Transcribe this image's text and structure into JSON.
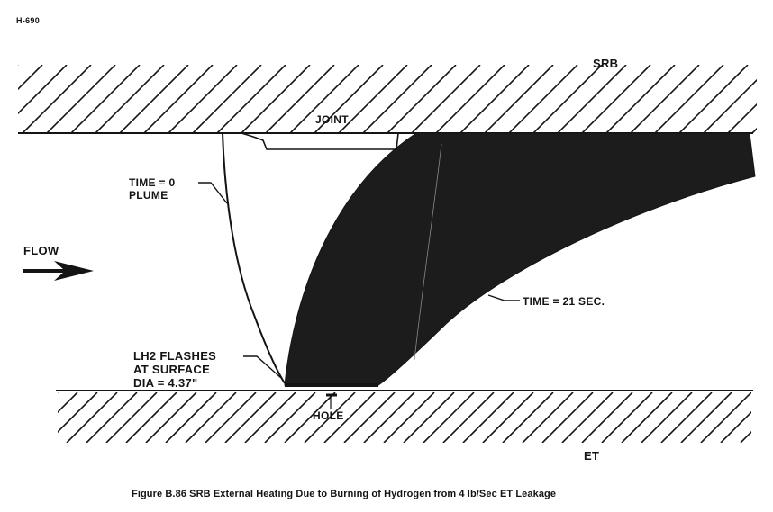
{
  "document_id": "H-690",
  "labels": {
    "srb": "SRB",
    "joint": "JOINT",
    "time_zero_line1": "TIME = 0",
    "time_zero_line2": "PLUME",
    "flow": "FLOW",
    "time_21": "TIME = 21 SEC.",
    "lh2_line1": "LH2 FLASHES",
    "lh2_line2": "AT SURFACE",
    "lh2_line3": "DIA = 4.37\"",
    "hole": "HOLE",
    "et": "ET"
  },
  "caption": "Figure B.86  SRB External Heating Due to Burning of Hydrogen from 4 lb/Sec ET Leakage",
  "colors": {
    "ink": "#141414",
    "plume_fill": "#1c1c1c",
    "background": "#ffffff"
  }
}
